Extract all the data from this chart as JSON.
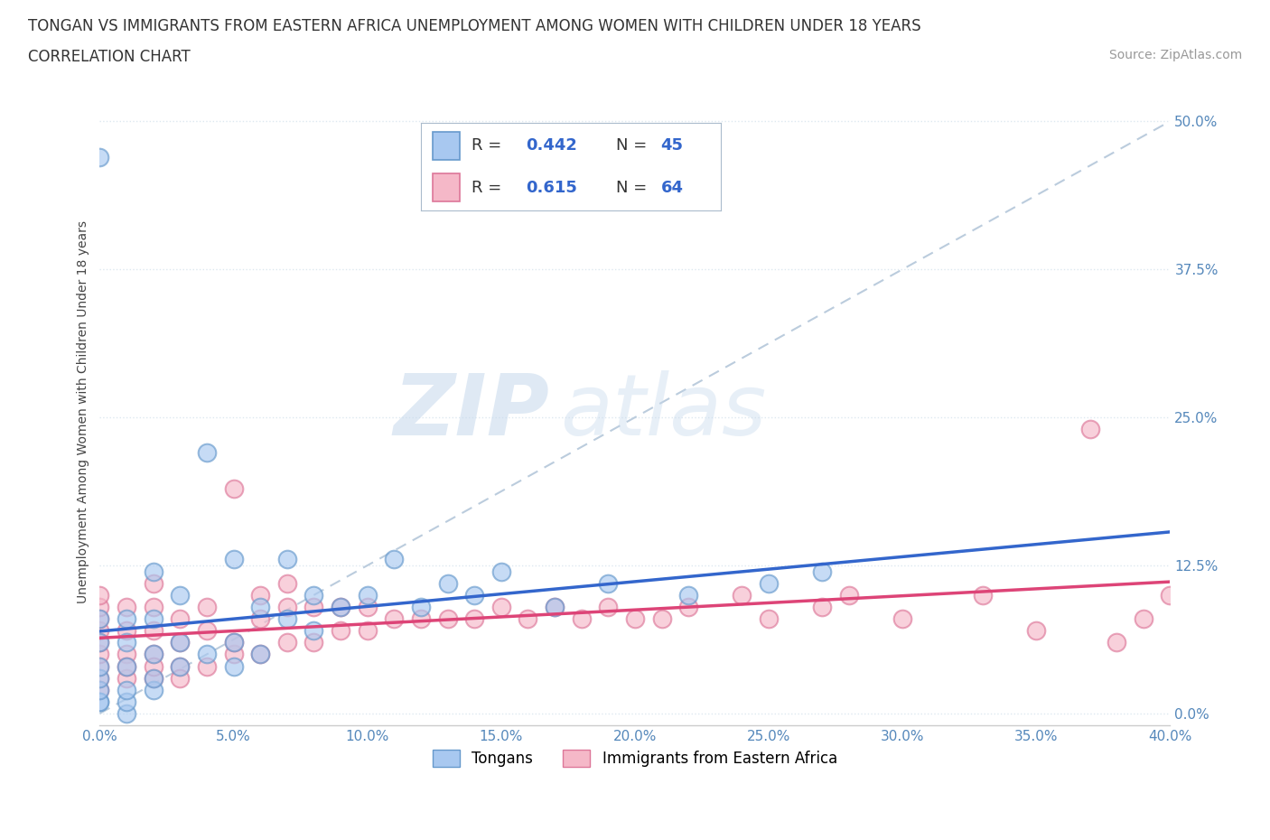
{
  "title_line1": "TONGAN VS IMMIGRANTS FROM EASTERN AFRICA UNEMPLOYMENT AMONG WOMEN WITH CHILDREN UNDER 18 YEARS",
  "title_line2": "CORRELATION CHART",
  "source_text": "Source: ZipAtlas.com",
  "ylabel": "Unemployment Among Women with Children Under 18 years",
  "xlim": [
    0.0,
    0.4
  ],
  "ylim": [
    -0.01,
    0.52
  ],
  "xtick_values": [
    0.0,
    0.05,
    0.1,
    0.15,
    0.2,
    0.25,
    0.3,
    0.35,
    0.4
  ],
  "ytick_values": [
    0.0,
    0.125,
    0.25,
    0.375,
    0.5
  ],
  "ytick_labels": [
    "0.0%",
    "12.5%",
    "25.0%",
    "37.5%",
    "50.0%"
  ],
  "blue_scatter_color": "#a8c8f0",
  "blue_scatter_edge": "#6699cc",
  "pink_scatter_color": "#f5b8c8",
  "pink_scatter_edge": "#dd7799",
  "blue_line_color": "#3366cc",
  "pink_line_color": "#dd4477",
  "ref_line_color": "#bbccdd",
  "legend_label1": "Tongans",
  "legend_label2": "Immigrants from Eastern Africa",
  "watermark_zip": "ZIP",
  "watermark_atlas": "atlas",
  "background_color": "#ffffff",
  "grid_color": "#dde8f0",
  "title_fontsize": 12,
  "source_fontsize": 10,
  "tick_fontsize": 11,
  "tick_color": "#5588bb",
  "tongans_x": [
    0.0,
    0.0,
    0.0,
    0.0,
    0.0,
    0.0,
    0.0,
    0.0,
    0.01,
    0.01,
    0.01,
    0.01,
    0.01,
    0.01,
    0.02,
    0.02,
    0.02,
    0.02,
    0.02,
    0.03,
    0.03,
    0.03,
    0.04,
    0.04,
    0.05,
    0.05,
    0.05,
    0.06,
    0.06,
    0.07,
    0.07,
    0.08,
    0.08,
    0.09,
    0.1,
    0.11,
    0.12,
    0.13,
    0.14,
    0.15,
    0.17,
    0.19,
    0.22,
    0.25,
    0.27
  ],
  "tongans_y": [
    0.47,
    0.01,
    0.01,
    0.02,
    0.03,
    0.04,
    0.06,
    0.08,
    0.0,
    0.01,
    0.02,
    0.04,
    0.06,
    0.08,
    0.02,
    0.03,
    0.05,
    0.08,
    0.12,
    0.04,
    0.06,
    0.1,
    0.22,
    0.05,
    0.06,
    0.13,
    0.04,
    0.05,
    0.09,
    0.08,
    0.13,
    0.07,
    0.1,
    0.09,
    0.1,
    0.13,
    0.09,
    0.11,
    0.1,
    0.12,
    0.09,
    0.11,
    0.1,
    0.11,
    0.12
  ],
  "eastern_x": [
    0.0,
    0.0,
    0.0,
    0.0,
    0.0,
    0.0,
    0.0,
    0.0,
    0.0,
    0.01,
    0.01,
    0.01,
    0.01,
    0.01,
    0.02,
    0.02,
    0.02,
    0.02,
    0.02,
    0.02,
    0.03,
    0.03,
    0.03,
    0.03,
    0.04,
    0.04,
    0.04,
    0.05,
    0.05,
    0.05,
    0.06,
    0.06,
    0.06,
    0.07,
    0.07,
    0.07,
    0.08,
    0.08,
    0.09,
    0.09,
    0.1,
    0.1,
    0.11,
    0.12,
    0.13,
    0.14,
    0.15,
    0.16,
    0.17,
    0.18,
    0.19,
    0.2,
    0.21,
    0.22,
    0.24,
    0.25,
    0.27,
    0.28,
    0.3,
    0.33,
    0.35,
    0.37,
    0.38,
    0.39,
    0.4
  ],
  "eastern_y": [
    0.03,
    0.04,
    0.05,
    0.06,
    0.07,
    0.08,
    0.09,
    0.1,
    0.02,
    0.03,
    0.05,
    0.07,
    0.09,
    0.04,
    0.03,
    0.05,
    0.07,
    0.09,
    0.11,
    0.04,
    0.04,
    0.06,
    0.08,
    0.03,
    0.04,
    0.07,
    0.09,
    0.05,
    0.19,
    0.06,
    0.05,
    0.08,
    0.1,
    0.06,
    0.09,
    0.11,
    0.06,
    0.09,
    0.07,
    0.09,
    0.07,
    0.09,
    0.08,
    0.08,
    0.08,
    0.08,
    0.09,
    0.08,
    0.09,
    0.08,
    0.09,
    0.08,
    0.08,
    0.09,
    0.1,
    0.08,
    0.09,
    0.1,
    0.08,
    0.1,
    0.07,
    0.24,
    0.06,
    0.08,
    0.1
  ]
}
